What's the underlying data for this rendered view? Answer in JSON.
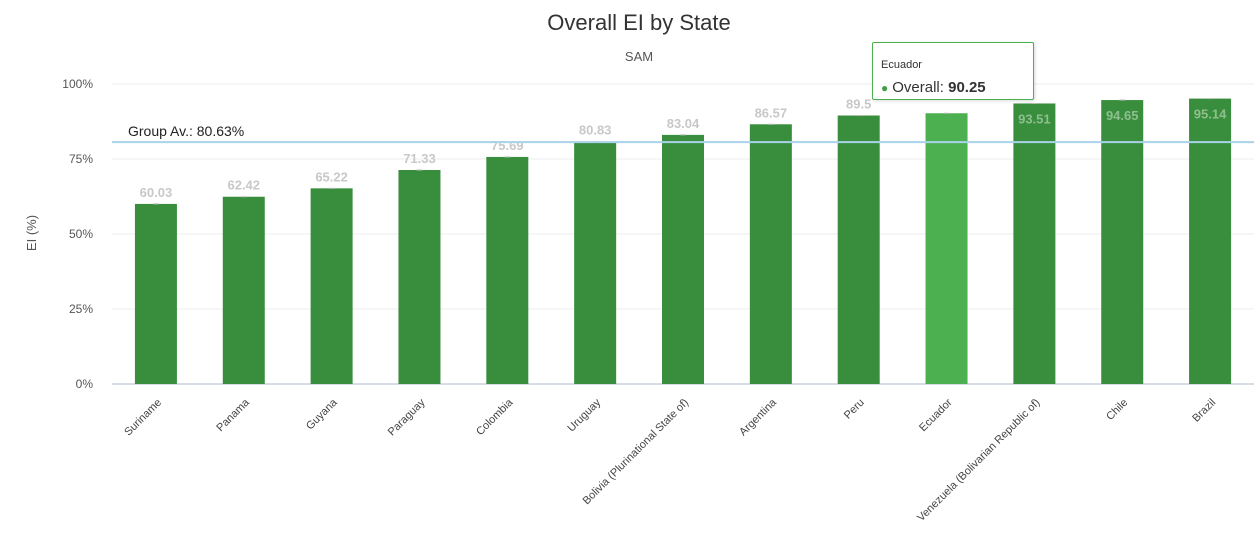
{
  "chart_data": {
    "type": "bar",
    "title": "Overall EI by State",
    "subtitle": "SAM",
    "ylabel": "EI (%)",
    "xlabel": "",
    "ylim": [
      0,
      100
    ],
    "yticks": [
      "0%",
      "25%",
      "50%",
      "75%",
      "100%"
    ],
    "ytick_values": [
      0,
      25,
      50,
      75,
      100
    ],
    "categories": [
      "Suriname",
      "Panama",
      "Guyana",
      "Paraguay",
      "Colombia",
      "Uruguay",
      "Bolivia (Plurinational State of)",
      "Argentina",
      "Peru",
      "Ecuador",
      "Venezuela (Bolivarian Republic of)",
      "Chile",
      "Brazil"
    ],
    "values": [
      60.03,
      62.42,
      65.22,
      71.33,
      75.69,
      80.83,
      83.04,
      86.57,
      89.5,
      90.25,
      93.51,
      94.65,
      95.14
    ],
    "value_labels": [
      "60.03",
      "62.42",
      "65.22",
      "71.33",
      "75.69",
      "80.83",
      "83.04",
      "86.57",
      "89.5",
      "",
      "93.51",
      "94.65",
      "95.14"
    ],
    "highlighted_category": "Ecuador",
    "average": {
      "label": "Group Av.: 80.63%",
      "value": 80.63
    },
    "colors": {
      "bar": "#388e3c",
      "bar_highlight": "#4caf50",
      "average_line": "#a8d3ea",
      "data_label": "#c8c8c8",
      "grid": "#eeeeee"
    },
    "grid": true,
    "legend": "none"
  },
  "tooltip": {
    "title": "Ecuador",
    "series_label": "Overall:",
    "value": "90.25"
  }
}
